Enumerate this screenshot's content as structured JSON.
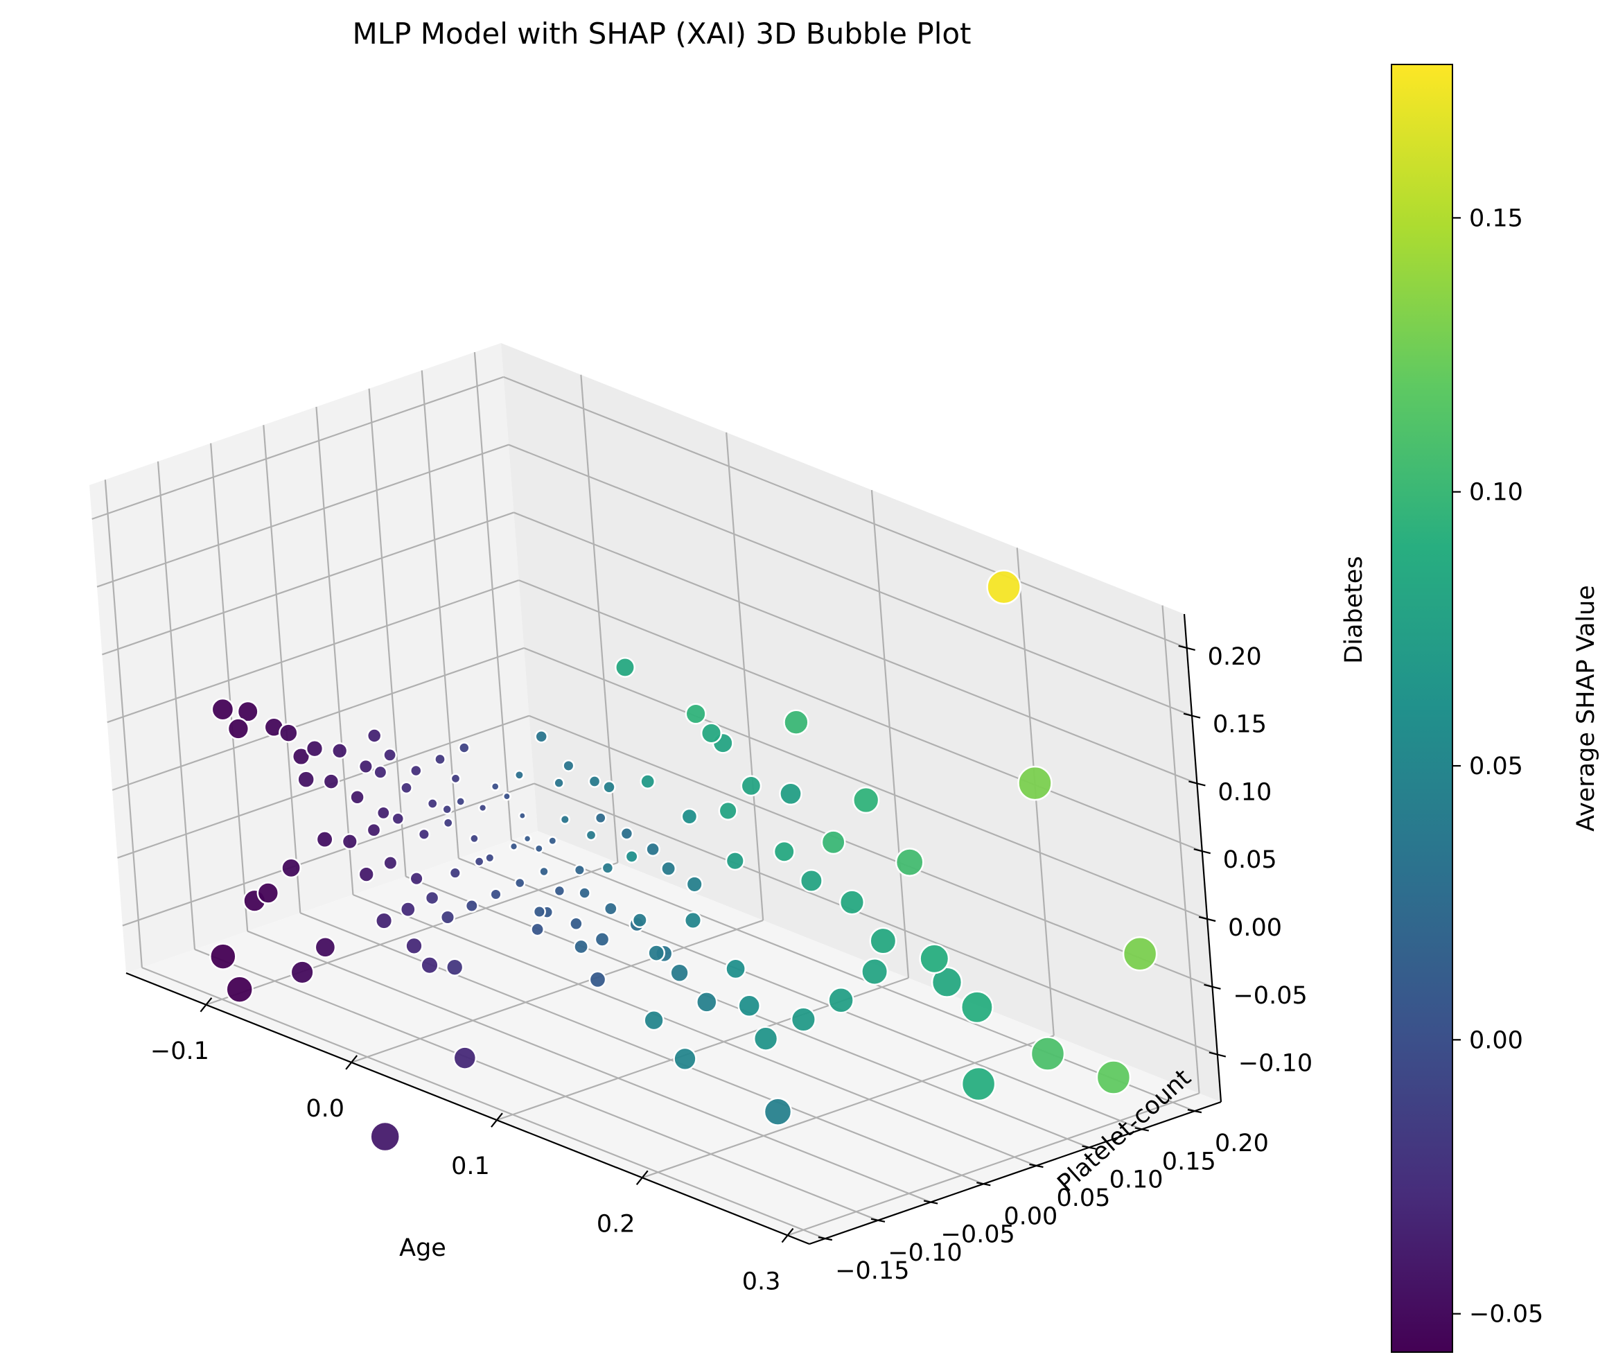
{
  "chart_data": {
    "type": "scatter",
    "title": "MLP Model with SHAP (XAI) 3D Bubble Plot",
    "xlabel": "Age",
    "ylabel": "Platelet-count",
    "zlabel": "Diabetes",
    "colorbar_label": "Average SHAP Value",
    "x_ticks": [
      "−0.1",
      "0.0",
      "0.1",
      "0.2",
      "0.3"
    ],
    "y_ticks": [
      "−0.15",
      "−0.10",
      "−0.05",
      "0.00",
      "0.05",
      "0.10",
      "0.15",
      "0.20"
    ],
    "z_ticks": [
      "−0.10",
      "−0.05",
      "0.00",
      "0.05",
      "0.10",
      "0.15",
      "0.20"
    ],
    "colorbar_ticks": [
      "−0.05",
      "0.00",
      "0.05",
      "0.10",
      "0.15"
    ],
    "color_range": [
      -0.057,
      0.178
    ],
    "colormap": "viridis",
    "points": [
      {
        "x": 0.2,
        "y": 0.21,
        "z": 0.2,
        "s": 0.175
      },
      {
        "x": 0.05,
        "y": 0.05,
        "z": 0.12,
        "s": 0.085
      },
      {
        "x": 0.09,
        "y": 0.06,
        "z": 0.1,
        "s": 0.095
      },
      {
        "x": 0.1,
        "y": 0.06,
        "z": 0.09,
        "s": 0.085
      },
      {
        "x": 0.1,
        "y": 0.07,
        "z": 0.08,
        "s": 0.08
      },
      {
        "x": 0.13,
        "y": 0.1,
        "z": 0.1,
        "s": 0.1
      },
      {
        "x": 0.25,
        "y": 0.16,
        "z": 0.09,
        "s": 0.13
      },
      {
        "x": 0.11,
        "y": 0.08,
        "z": 0.05,
        "s": 0.08
      },
      {
        "x": 0.13,
        "y": 0.09,
        "z": 0.05,
        "s": 0.075
      },
      {
        "x": 0.16,
        "y": 0.12,
        "z": 0.05,
        "s": 0.095
      },
      {
        "x": 0.06,
        "y": 0.05,
        "z": 0.04,
        "s": 0.07
      },
      {
        "x": 0.1,
        "y": 0.07,
        "z": 0.03,
        "s": 0.08
      },
      {
        "x": 0.08,
        "y": 0.06,
        "z": 0.02,
        "s": 0.06
      },
      {
        "x": 0.15,
        "y": 0.1,
        "z": 0.02,
        "s": 0.1
      },
      {
        "x": 0.18,
        "y": 0.13,
        "z": 0.01,
        "s": 0.105
      },
      {
        "x": 0.13,
        "y": 0.08,
        "z": 0.01,
        "s": 0.085
      },
      {
        "x": 0.11,
        "y": 0.06,
        "z": 0.0,
        "s": 0.075
      },
      {
        "x": 0.14,
        "y": 0.09,
        "z": -0.01,
        "s": 0.08
      },
      {
        "x": 0.16,
        "y": 0.1,
        "z": -0.02,
        "s": 0.085
      },
      {
        "x": 0.3,
        "y": 0.18,
        "z": -0.02,
        "s": 0.13
      },
      {
        "x": 0.06,
        "y": 0.03,
        "z": -0.01,
        "s": 0.06
      },
      {
        "x": 0.18,
        "y": 0.1,
        "z": -0.04,
        "s": 0.085
      },
      {
        "x": 0.2,
        "y": 0.12,
        "z": -0.05,
        "s": 0.09
      },
      {
        "x": 0.2,
        "y": 0.13,
        "z": -0.07,
        "s": 0.085
      },
      {
        "x": 0.22,
        "y": 0.13,
        "z": -0.08,
        "s": 0.09
      },
      {
        "x": 0.26,
        "y": 0.14,
        "z": -0.1,
        "s": 0.11
      },
      {
        "x": 0.29,
        "y": 0.16,
        "z": -0.11,
        "s": 0.12
      },
      {
        "x": 0.24,
        "y": 0.1,
        "z": -0.12,
        "s": 0.09
      },
      {
        "x": 0.18,
        "y": 0.09,
        "z": -0.06,
        "s": 0.08
      },
      {
        "x": 0.17,
        "y": 0.07,
        "z": -0.08,
        "s": 0.075
      },
      {
        "x": 0.15,
        "y": 0.06,
        "z": -0.1,
        "s": 0.07
      },
      {
        "x": 0.12,
        "y": 0.04,
        "z": -0.07,
        "s": 0.06
      },
      {
        "x": 0.1,
        "y": 0.03,
        "z": -0.04,
        "s": 0.05
      },
      {
        "x": 0.12,
        "y": 0.05,
        "z": -0.1,
        "s": 0.06
      },
      {
        "x": 0.13,
        "y": 0.05,
        "z": -0.12,
        "s": 0.065
      },
      {
        "x": 0.09,
        "y": 0.0,
        "z": -0.11,
        "s": 0.05
      },
      {
        "x": 0.11,
        "y": 0.0,
        "z": -0.13,
        "s": 0.05
      },
      {
        "x": 0.15,
        "y": 0.03,
        "z": -0.16,
        "s": 0.045
      },
      {
        "x": 0.04,
        "y": 0.02,
        "z": 0.0,
        "s": 0.04
      },
      {
        "x": 0.05,
        "y": 0.02,
        "z": -0.02,
        "s": 0.04
      },
      {
        "x": 0.03,
        "y": 0.01,
        "z": 0.01,
        "s": 0.035
      },
      {
        "x": 0.07,
        "y": 0.02,
        "z": -0.05,
        "s": 0.04
      },
      {
        "x": 0.08,
        "y": 0.02,
        "z": -0.07,
        "s": 0.04
      },
      {
        "x": 0.05,
        "y": -0.01,
        "z": -0.07,
        "s": 0.02
      },
      {
        "x": 0.06,
        "y": -0.01,
        "z": -0.09,
        "s": 0.01
      },
      {
        "x": 0.03,
        "y": -0.02,
        "z": -0.05,
        "s": 0.01
      },
      {
        "x": 0.02,
        "y": 0.0,
        "z": -0.03,
        "s": 0.015
      },
      {
        "x": 0.02,
        "y": 0.03,
        "z": 0.04,
        "s": 0.035
      },
      {
        "x": 0.02,
        "y": 0.02,
        "z": 0.03,
        "s": 0.035
      },
      {
        "x": 0.03,
        "y": 0.04,
        "z": 0.03,
        "s": 0.04
      },
      {
        "x": 0.04,
        "y": 0.04,
        "z": 0.03,
        "s": 0.045
      },
      {
        "x": 0.0,
        "y": 0.01,
        "z": 0.03,
        "s": 0.03
      },
      {
        "x": 0.01,
        "y": 0.02,
        "z": 0.06,
        "s": 0.035
      },
      {
        "x": 0.01,
        "y": 0.0,
        "z": -0.01,
        "s": 0.01
      },
      {
        "x": 0.0,
        "y": 0.0,
        "z": -0.02,
        "s": 0.005
      },
      {
        "x": 0.02,
        "y": 0.0,
        "z": -0.06,
        "s": 0.01
      },
      {
        "x": -0.01,
        "y": -0.01,
        "z": -0.03,
        "s": -0.005
      },
      {
        "x": -0.02,
        "y": -0.01,
        "z": -0.02,
        "s": -0.01
      },
      {
        "x": -0.03,
        "y": -0.02,
        "z": -0.01,
        "s": -0.015
      },
      {
        "x": -0.04,
        "y": -0.02,
        "z": 0.0,
        "s": -0.02
      },
      {
        "x": -0.05,
        "y": -0.03,
        "z": 0.01,
        "s": -0.025
      },
      {
        "x": -0.06,
        "y": -0.04,
        "z": 0.02,
        "s": -0.03
      },
      {
        "x": -0.07,
        "y": -0.04,
        "z": 0.02,
        "s": -0.035
      },
      {
        "x": -0.08,
        "y": -0.05,
        "z": 0.03,
        "s": -0.04
      },
      {
        "x": -0.09,
        "y": -0.06,
        "z": 0.03,
        "s": -0.045
      },
      {
        "x": -0.1,
        "y": -0.07,
        "z": 0.04,
        "s": -0.05
      },
      {
        "x": -0.11,
        "y": -0.07,
        "z": 0.04,
        "s": -0.052
      },
      {
        "x": -0.12,
        "y": -0.08,
        "z": 0.05,
        "s": -0.055
      },
      {
        "x": -0.13,
        "y": -0.09,
        "z": 0.05,
        "s": -0.055
      },
      {
        "x": -0.12,
        "y": -0.09,
        "z": 0.04,
        "s": -0.055
      },
      {
        "x": -0.1,
        "y": -0.06,
        "z": 0.02,
        "s": -0.048
      },
      {
        "x": -0.09,
        "y": -0.07,
        "z": 0.01,
        "s": -0.045
      },
      {
        "x": -0.08,
        "y": -0.06,
        "z": 0.01,
        "s": -0.042
      },
      {
        "x": -0.07,
        "y": -0.05,
        "z": 0.0,
        "s": -0.04
      },
      {
        "x": -0.06,
        "y": -0.04,
        "z": -0.01,
        "s": -0.035
      },
      {
        "x": -0.05,
        "y": -0.04,
        "z": -0.01,
        "s": -0.03
      },
      {
        "x": -0.04,
        "y": -0.03,
        "z": -0.02,
        "s": -0.025
      },
      {
        "x": -0.06,
        "y": -0.05,
        "z": -0.02,
        "s": -0.038
      },
      {
        "x": -0.07,
        "y": -0.06,
        "z": -0.03,
        "s": -0.042
      },
      {
        "x": -0.08,
        "y": -0.07,
        "z": -0.03,
        "s": -0.046
      },
      {
        "x": -0.05,
        "y": -0.05,
        "z": -0.04,
        "s": -0.035
      },
      {
        "x": -0.04,
        "y": -0.04,
        "z": -0.05,
        "s": -0.03
      },
      {
        "x": -0.06,
        "y": -0.06,
        "z": -0.05,
        "s": -0.04
      },
      {
        "x": -0.09,
        "y": -0.09,
        "z": -0.05,
        "s": -0.05
      },
      {
        "x": -0.1,
        "y": -0.1,
        "z": -0.07,
        "s": -0.055
      },
      {
        "x": -0.11,
        "y": -0.1,
        "z": -0.08,
        "s": -0.055
      },
      {
        "x": -0.12,
        "y": -0.12,
        "z": -0.12,
        "s": -0.057
      },
      {
        "x": -0.11,
        "y": -0.12,
        "z": -0.14,
        "s": -0.057
      },
      {
        "x": -0.08,
        "y": -0.1,
        "z": -0.12,
        "s": -0.05
      },
      {
        "x": -0.07,
        "y": -0.09,
        "z": -0.1,
        "s": -0.048
      },
      {
        "x": -0.03,
        "y": -0.06,
        "z": -0.09,
        "s": -0.03
      },
      {
        "x": -0.02,
        "y": -0.06,
        "z": -0.1,
        "s": -0.028
      },
      {
        "x": -0.01,
        "y": -0.05,
        "z": -0.1,
        "s": -0.02
      },
      {
        "x": 0.0,
        "y": -0.06,
        "z": -0.16,
        "s": -0.03
      },
      {
        "x": -0.03,
        "y": -0.1,
        "z": -0.22,
        "s": -0.04
      },
      {
        "x": -0.02,
        "y": -0.03,
        "z": -0.04,
        "s": -0.015
      },
      {
        "x": -0.01,
        "y": -0.02,
        "z": -0.03,
        "s": -0.01
      },
      {
        "x": -0.03,
        "y": -0.04,
        "z": -0.06,
        "s": -0.02
      },
      {
        "x": -0.02,
        "y": -0.04,
        "z": -0.07,
        "s": -0.015
      },
      {
        "x": -0.04,
        "y": -0.05,
        "z": -0.07,
        "s": -0.028
      },
      {
        "x": -0.05,
        "y": -0.06,
        "z": -0.08,
        "s": -0.033
      },
      {
        "x": -0.03,
        "y": -0.01,
        "z": 0.02,
        "s": -0.015
      },
      {
        "x": -0.02,
        "y": -0.02,
        "z": 0.01,
        "s": -0.01
      },
      {
        "x": -0.05,
        "y": -0.02,
        "z": 0.02,
        "s": -0.025
      },
      {
        "x": -0.06,
        "y": -0.03,
        "z": 0.03,
        "s": -0.03
      },
      {
        "x": -0.04,
        "y": -0.01,
        "z": 0.03,
        "s": -0.018
      },
      {
        "x": -0.07,
        "y": -0.03,
        "z": 0.04,
        "s": -0.034
      },
      {
        "x": -0.03,
        "y": 0.0,
        "z": 0.04,
        "s": -0.01
      },
      {
        "x": -0.01,
        "y": 0.0,
        "z": 0.02,
        "s": 0.0
      },
      {
        "x": 0.0,
        "y": 0.01,
        "z": 0.0,
        "s": 0.005
      },
      {
        "x": 0.01,
        "y": 0.01,
        "z": -0.02,
        "s": 0.01
      },
      {
        "x": 0.03,
        "y": 0.02,
        "z": -0.03,
        "s": 0.02
      },
      {
        "x": 0.04,
        "y": 0.01,
        "z": -0.04,
        "s": 0.02
      },
      {
        "x": 0.05,
        "y": 0.02,
        "z": -0.05,
        "s": 0.025
      },
      {
        "x": 0.06,
        "y": 0.03,
        "z": -0.06,
        "s": 0.03
      },
      {
        "x": 0.07,
        "y": 0.04,
        "z": -0.08,
        "s": 0.035
      },
      {
        "x": 0.08,
        "y": 0.04,
        "z": -0.09,
        "s": 0.04
      },
      {
        "x": 0.09,
        "y": 0.05,
        "z": -0.11,
        "s": 0.045
      },
      {
        "x": 0.04,
        "y": 0.03,
        "z": 0.01,
        "s": 0.025
      },
      {
        "x": 0.05,
        "y": 0.04,
        "z": 0.0,
        "s": 0.03
      },
      {
        "x": 0.06,
        "y": 0.05,
        "z": -0.01,
        "s": 0.035
      },
      {
        "x": 0.07,
        "y": 0.05,
        "z": -0.02,
        "s": 0.04
      },
      {
        "x": 0.08,
        "y": 0.06,
        "z": -0.03,
        "s": 0.045
      },
      {
        "x": 0.02,
        "y": 0.01,
        "z": -0.01,
        "s": 0.012
      },
      {
        "x": 0.01,
        "y": -0.01,
        "z": -0.04,
        "s": 0.005
      },
      {
        "x": 0.0,
        "y": -0.02,
        "z": -0.05,
        "s": 0.0
      },
      {
        "x": -0.01,
        "y": -0.03,
        "z": -0.06,
        "s": -0.005
      },
      {
        "x": 0.03,
        "y": 0.0,
        "z": -0.04,
        "s": 0.01
      },
      {
        "x": 0.04,
        "y": 0.0,
        "z": -0.06,
        "s": 0.012
      },
      {
        "x": 0.05,
        "y": 0.01,
        "z": -0.07,
        "s": 0.018
      },
      {
        "x": 0.02,
        "y": -0.01,
        "z": -0.07,
        "s": 0.005
      },
      {
        "x": -0.02,
        "y": 0.0,
        "z": 0.0,
        "s": -0.008
      },
      {
        "x": -0.03,
        "y": -0.02,
        "z": 0.0,
        "s": -0.015
      },
      {
        "x": -0.01,
        "y": 0.01,
        "z": 0.01,
        "s": 0.002
      }
    ]
  }
}
